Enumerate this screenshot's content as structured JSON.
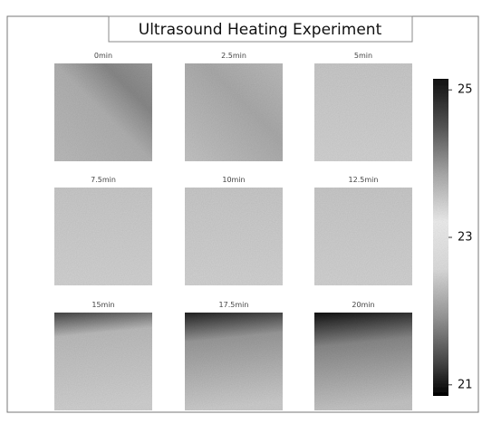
{
  "title": "Ultrasound Heating Experiment",
  "panels": [
    {
      "label": "0min"
    },
    {
      "label": "2.5min"
    },
    {
      "label": "5min"
    },
    {
      "label": "7.5min"
    },
    {
      "label": "10min"
    },
    {
      "label": "12.5min"
    },
    {
      "label": "15min"
    },
    {
      "label": "17.5min"
    },
    {
      "label": "20min"
    }
  ],
  "colorbar": {
    "lim": [
      20.85,
      25.15
    ],
    "ticks": [
      25,
      23,
      21
    ]
  }
}
